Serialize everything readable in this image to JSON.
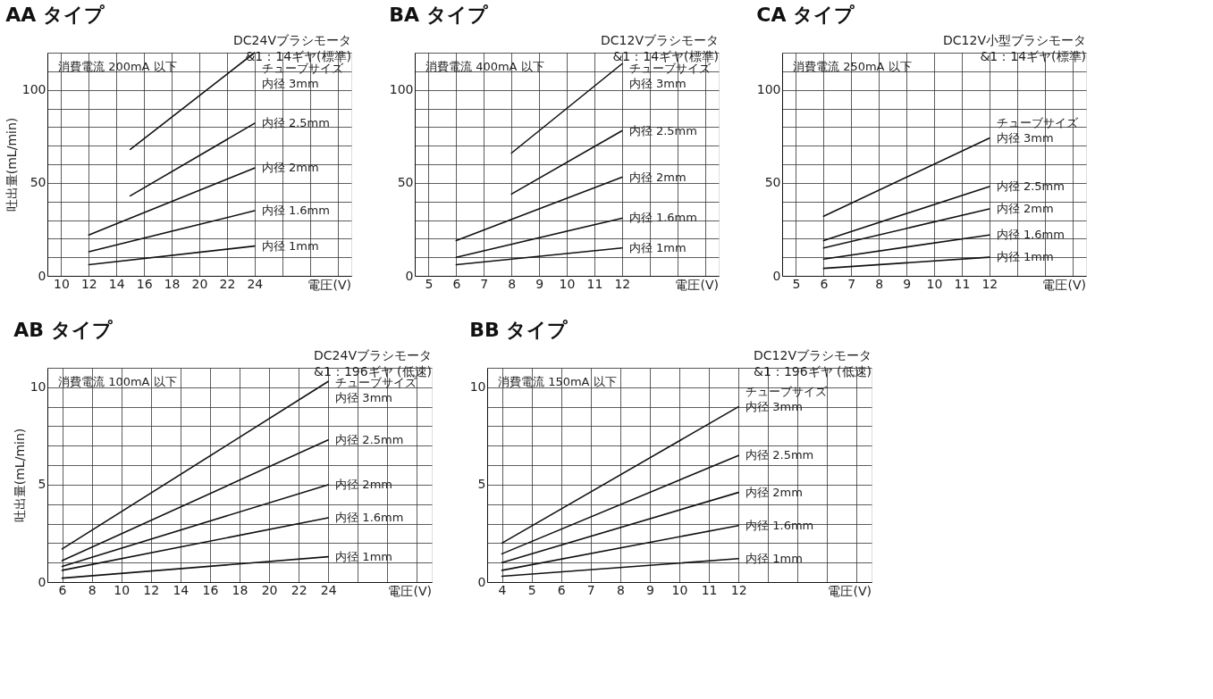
{
  "chart_data": [
    {
      "type": "line",
      "title": "AA タイプ",
      "subtitle": "DC24Vブラシモータ\n&1：14ギヤ(標準)",
      "xlabel": "電圧(V)",
      "ylabel": "吐出量(mL/min)",
      "annotations": [
        "消費電流 200mA 以下",
        "チューブサイズ"
      ],
      "xlim": [
        9,
        31
      ],
      "ylim": [
        0,
        120
      ],
      "xticks": [
        10,
        12,
        14,
        16,
        18,
        20,
        22,
        24,
        {
          "value": 26,
          "label": null
        },
        {
          "value": 28,
          "label": null
        },
        {
          "value": 30,
          "label": null
        }
      ],
      "yticks": [
        0,
        {
          "value": 10,
          "label": null
        },
        {
          "value": 20,
          "label": null
        },
        {
          "value": 30,
          "label": null
        },
        {
          "value": 40,
          "label": null
        },
        50,
        {
          "value": 60,
          "label": null
        },
        {
          "value": 70,
          "label": null
        },
        {
          "value": 80,
          "label": null
        },
        {
          "value": 90,
          "label": null
        },
        100,
        {
          "value": 110,
          "label": null
        },
        {
          "value": 120,
          "label": null
        }
      ],
      "grid": true,
      "series": [
        {
          "name": "内径 3mm",
          "color": "#111111",
          "x": [
            15,
            24
          ],
          "values": [
            68,
            120
          ]
        },
        {
          "name": "内径 2.5mm",
          "color": "#111111",
          "x": [
            15,
            24
          ],
          "values": [
            43,
            82
          ]
        },
        {
          "name": "内径 2mm",
          "color": "#111111",
          "x": [
            12,
            24
          ],
          "values": [
            22,
            58
          ]
        },
        {
          "name": "内径 1.6mm",
          "color": "#111111",
          "x": [
            12,
            24
          ],
          "values": [
            13,
            35
          ]
        },
        {
          "name": "内径 1mm",
          "color": "#111111",
          "x": [
            12,
            24
          ],
          "values": [
            6,
            16
          ]
        }
      ]
    },
    {
      "type": "line",
      "title": "BA タイプ",
      "subtitle": "DC12Vブラシモータ\n&1：14ギヤ(標準)",
      "xlabel": "電圧(V)",
      "annotations": [
        "消費電流 400mA 以下",
        "チューブサイズ"
      ],
      "xlim": [
        4.5,
        15.5
      ],
      "ylim": [
        0,
        120
      ],
      "xticks": [
        5,
        6,
        7,
        8,
        9,
        10,
        11,
        12,
        {
          "value": 13,
          "label": null
        },
        {
          "value": 14,
          "label": null
        },
        {
          "value": 15,
          "label": null
        }
      ],
      "yticks": [
        0,
        {
          "value": 10,
          "label": null
        },
        {
          "value": 20,
          "label": null
        },
        {
          "value": 30,
          "label": null
        },
        {
          "value": 40,
          "label": null
        },
        50,
        {
          "value": 60,
          "label": null
        },
        {
          "value": 70,
          "label": null
        },
        {
          "value": 80,
          "label": null
        },
        {
          "value": 90,
          "label": null
        },
        100,
        {
          "value": 110,
          "label": null
        },
        {
          "value": 120,
          "label": null
        }
      ],
      "grid": true,
      "series": [
        {
          "name": "内径 3mm",
          "color": "#111111",
          "x": [
            8,
            12
          ],
          "values": [
            66,
            114
          ]
        },
        {
          "name": "内径 2.5mm",
          "color": "#111111",
          "x": [
            8,
            12
          ],
          "values": [
            44,
            78
          ]
        },
        {
          "name": "内径 2mm",
          "color": "#111111",
          "x": [
            6,
            12
          ],
          "values": [
            19,
            53
          ]
        },
        {
          "name": "内径 1.6mm",
          "color": "#111111",
          "x": [
            6,
            12
          ],
          "values": [
            10,
            31
          ]
        },
        {
          "name": "内径 1mm",
          "color": "#111111",
          "x": [
            6,
            12
          ],
          "values": [
            6,
            15
          ]
        }
      ]
    },
    {
      "type": "line",
      "title": "CA タイプ",
      "subtitle": "DC12V小型ブラシモータ\n&1：14ギヤ(標準)",
      "xlabel": "電圧(V)",
      "annotations": [
        "消費電流 250mA 以下",
        "チューブサイズ"
      ],
      "xlim": [
        4.5,
        15.5
      ],
      "ylim": [
        0,
        120
      ],
      "xticks": [
        5,
        6,
        7,
        8,
        9,
        10,
        11,
        12,
        {
          "value": 13,
          "label": null
        },
        {
          "value": 14,
          "label": null
        },
        {
          "value": 15,
          "label": null
        }
      ],
      "yticks": [
        0,
        {
          "value": 10,
          "label": null
        },
        {
          "value": 20,
          "label": null
        },
        {
          "value": 30,
          "label": null
        },
        {
          "value": 40,
          "label": null
        },
        50,
        {
          "value": 60,
          "label": null
        },
        {
          "value": 70,
          "label": null
        },
        {
          "value": 80,
          "label": null
        },
        {
          "value": 90,
          "label": null
        },
        100,
        {
          "value": 110,
          "label": null
        },
        {
          "value": 120,
          "label": null
        }
      ],
      "grid": true,
      "series": [
        {
          "name": "内径 3mm",
          "color": "#111111",
          "x": [
            6,
            12
          ],
          "values": [
            32,
            74
          ]
        },
        {
          "name": "内径 2.5mm",
          "color": "#111111",
          "x": [
            6,
            12
          ],
          "values": [
            19,
            48
          ]
        },
        {
          "name": "内径 2mm",
          "color": "#111111",
          "x": [
            6,
            12
          ],
          "values": [
            15,
            36
          ]
        },
        {
          "name": "内径 1.6mm",
          "color": "#111111",
          "x": [
            6,
            12
          ],
          "values": [
            9,
            22
          ]
        },
        {
          "name": "内径 1mm",
          "color": "#111111",
          "x": [
            6,
            12
          ],
          "values": [
            4,
            10
          ]
        }
      ]
    },
    {
      "type": "line",
      "title": "AB タイプ",
      "subtitle": "DC24Vブラシモータ\n&1：196ギヤ (低速)",
      "xlabel": "電圧(V)",
      "ylabel": "吐出量(mL/min)",
      "annotations": [
        "消費電流 100mA 以下",
        "チューブサイズ"
      ],
      "xlim": [
        5,
        31
      ],
      "ylim": [
        0,
        11
      ],
      "xticks": [
        6,
        8,
        10,
        12,
        14,
        16,
        18,
        20,
        22,
        24,
        {
          "value": 26,
          "label": null
        },
        {
          "value": 28,
          "label": null
        },
        {
          "value": 30,
          "label": null
        }
      ],
      "yticks": [
        0,
        {
          "value": 1,
          "label": null
        },
        {
          "value": 2,
          "label": null
        },
        {
          "value": 3,
          "label": null
        },
        {
          "value": 4,
          "label": null
        },
        5,
        {
          "value": 6,
          "label": null
        },
        {
          "value": 7,
          "label": null
        },
        {
          "value": 8,
          "label": null
        },
        {
          "value": 9,
          "label": null
        },
        10,
        {
          "value": 11,
          "label": null
        }
      ],
      "grid": true,
      "series": [
        {
          "name": "内径 3mm",
          "color": "#111111",
          "x": [
            6,
            24
          ],
          "values": [
            1.7,
            10.3
          ]
        },
        {
          "name": "内径 2.5mm",
          "color": "#111111",
          "x": [
            6,
            24
          ],
          "values": [
            1.1,
            7.3
          ]
        },
        {
          "name": "内径 2mm",
          "color": "#111111",
          "x": [
            6,
            24
          ],
          "values": [
            0.8,
            5.0
          ]
        },
        {
          "name": "内径 1.6mm",
          "color": "#111111",
          "x": [
            6,
            24
          ],
          "values": [
            0.6,
            3.3
          ]
        },
        {
          "name": "内径 1mm",
          "color": "#111111",
          "x": [
            6,
            24
          ],
          "values": [
            0.2,
            1.3
          ]
        }
      ]
    },
    {
      "type": "line",
      "title": "BB タイプ",
      "subtitle": "DC12Vブラシモータ\n&1：196ギヤ (低速)",
      "xlabel": "電圧(V)",
      "annotations": [
        "消費電流 150mA 以下",
        "チューブサイズ"
      ],
      "xlim": [
        3.5,
        16.5
      ],
      "ylim": [
        0,
        11
      ],
      "xticks": [
        4,
        5,
        6,
        7,
        8,
        9,
        10,
        11,
        12,
        {
          "value": 13,
          "label": null
        },
        {
          "value": 14,
          "label": null
        },
        {
          "value": 15,
          "label": null
        },
        {
          "value": 16,
          "label": null
        }
      ],
      "yticks": [
        0,
        {
          "value": 1,
          "label": null
        },
        {
          "value": 2,
          "label": null
        },
        {
          "value": 3,
          "label": null
        },
        {
          "value": 4,
          "label": null
        },
        5,
        {
          "value": 6,
          "label": null
        },
        {
          "value": 7,
          "label": null
        },
        {
          "value": 8,
          "label": null
        },
        {
          "value": 9,
          "label": null
        },
        10,
        {
          "value": 11,
          "label": null
        }
      ],
      "grid": true,
      "series": [
        {
          "name": "内径 3mm",
          "color": "#111111",
          "x": [
            4,
            12
          ],
          "values": [
            2.0,
            9.0
          ]
        },
        {
          "name": "内径 2.5mm",
          "color": "#111111",
          "x": [
            4,
            12
          ],
          "values": [
            1.45,
            6.5
          ]
        },
        {
          "name": "内径 2mm",
          "color": "#111111",
          "x": [
            4,
            12
          ],
          "values": [
            1.0,
            4.6
          ]
        },
        {
          "name": "内径 1.6mm",
          "color": "#111111",
          "x": [
            4,
            12
          ],
          "values": [
            0.6,
            2.9
          ]
        },
        {
          "name": "内径 1mm",
          "color": "#111111",
          "x": [
            4,
            12
          ],
          "values": [
            0.3,
            1.2
          ]
        }
      ]
    }
  ]
}
